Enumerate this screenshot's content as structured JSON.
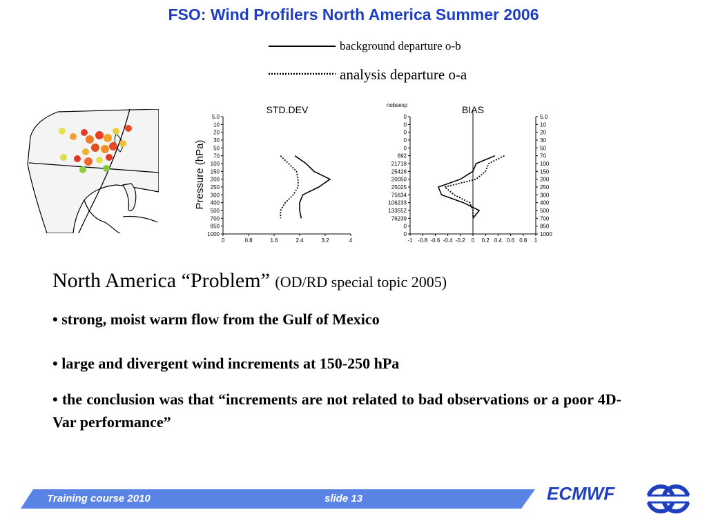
{
  "title": "FSO: Wind Profilers North America Summer 2006",
  "legend": {
    "items": [
      {
        "label": "background departure o-b",
        "style": "solid"
      },
      {
        "label": "analysis departure o-a",
        "style": "dotted"
      }
    ]
  },
  "heading": {
    "main": "North America “Problem” ",
    "sub": "(OD/RD special topic 2005)"
  },
  "bullets": [
    "• strong, moist warm flow from the Gulf of Mexico",
    "• large and divergent wind increments at 150-250 hPa",
    "• the conclusion was that “increments are not related to bad observations or a poor 4D-Var performance”"
  ],
  "footer": {
    "course": "Training course  2010",
    "slide": "slide 13",
    "brand": "ECMWF"
  },
  "colors": {
    "title": "#1f3fbf",
    "footer_bar": "#5a83e6",
    "brand": "#1f3fbf"
  },
  "chart_data": [
    {
      "type": "line",
      "title": "STD.DEV",
      "ylabel": "Pressure (hPa)",
      "xlim": [
        0,
        4
      ],
      "xticks": [
        "0",
        "0.8",
        "1.6",
        "2.4",
        "3.2",
        "4"
      ],
      "yticks": [
        "5.0",
        "10",
        "20",
        "30",
        "50",
        "70",
        "100",
        "150",
        "200",
        "250",
        "300",
        "400",
        "500",
        "700",
        "850",
        "1000"
      ],
      "series": [
        {
          "style": "solid",
          "points": [
            [
              2.25,
              70
            ],
            [
              2.6,
              100
            ],
            [
              2.85,
              150
            ],
            [
              3.35,
              200
            ],
            [
              3.0,
              250
            ],
            [
              2.5,
              300
            ],
            [
              2.4,
              400
            ],
            [
              2.4,
              500
            ],
            [
              2.45,
              700
            ]
          ]
        },
        {
          "style": "dotted",
          "points": [
            [
              1.8,
              70
            ],
            [
              2.05,
              100
            ],
            [
              2.3,
              150
            ],
            [
              2.35,
              200
            ],
            [
              2.35,
              250
            ],
            [
              2.2,
              300
            ],
            [
              1.95,
              400
            ],
            [
              1.8,
              500
            ],
            [
              1.8,
              700
            ]
          ]
        }
      ]
    },
    {
      "type": "line",
      "title": "BIAS",
      "xlim": [
        -1,
        1
      ],
      "xticks": [
        "-1",
        "-0.8",
        "-0.6",
        "-0.4",
        "-0.2",
        "0",
        "0.2",
        "0.4",
        "0.6",
        "0.8",
        "1"
      ],
      "yticks": [
        "5.0",
        "10",
        "20",
        "30",
        "50",
        "70",
        "100",
        "150",
        "200",
        "250",
        "300",
        "400",
        "500",
        "700",
        "850",
        "1000"
      ],
      "nobsexp_label": "nobsexp",
      "nobsexp": [
        "0",
        "0",
        "0",
        "0",
        "0",
        "692",
        "21718",
        "25426",
        "20050",
        "25025",
        "75634",
        "106233",
        "133552",
        "76239",
        "0",
        "0"
      ],
      "series": [
        {
          "style": "solid",
          "points": [
            [
              0.35,
              70
            ],
            [
              0.05,
              100
            ],
            [
              0.0,
              150
            ],
            [
              -0.2,
              200
            ],
            [
              -0.55,
              250
            ],
            [
              -0.5,
              300
            ],
            [
              -0.15,
              400
            ],
            [
              0.1,
              500
            ],
            [
              0.0,
              700
            ]
          ]
        },
        {
          "style": "dotted",
          "points": [
            [
              0.5,
              70
            ],
            [
              0.25,
              100
            ],
            [
              0.2,
              150
            ],
            [
              0.05,
              200
            ],
            [
              -0.45,
              250
            ],
            [
              -0.3,
              300
            ],
            [
              -0.05,
              400
            ],
            [
              0.0,
              500
            ],
            [
              0.0,
              700
            ]
          ]
        }
      ]
    }
  ]
}
